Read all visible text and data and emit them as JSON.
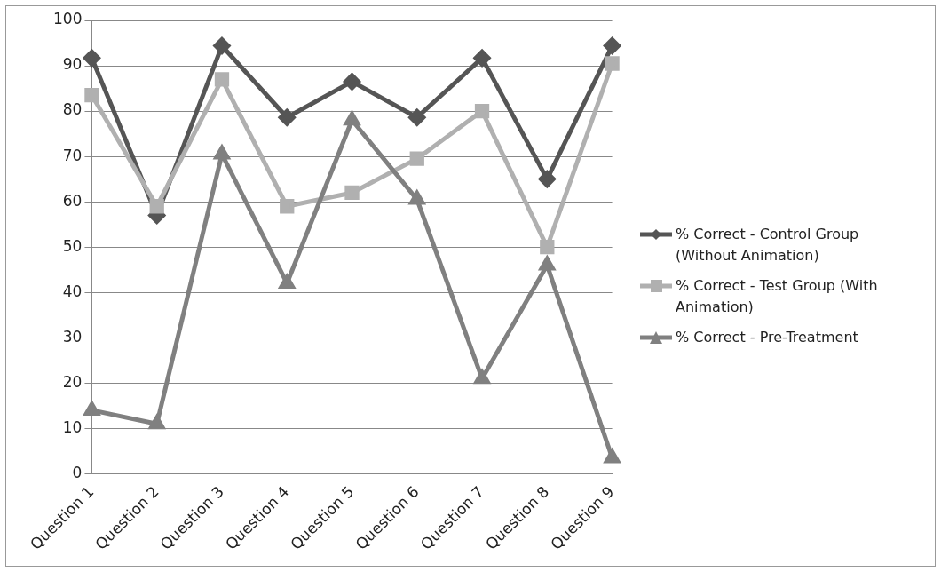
{
  "chart_data": {
    "type": "line",
    "categories": [
      "Question 1",
      "Question 2",
      "Question 3",
      "Question 4",
      "Question 5",
      "Question 6",
      "Question 7",
      "Question 8",
      "Question 9"
    ],
    "series": [
      {
        "name": "% Correct - Control Group (Without Animation)",
        "color": "#555555",
        "marker": "diamond",
        "values": [
          91.7,
          57,
          94.4,
          78.6,
          86.5,
          78.6,
          91.7,
          65,
          94.4
        ]
      },
      {
        "name": "% Correct - Test Group (With Animation)",
        "color": "#b0b0b0",
        "marker": "square",
        "values": [
          83.5,
          59,
          87,
          59,
          62,
          69.5,
          80,
          50,
          90.5
        ]
      },
      {
        "name": "% Correct - Pre-Treatment",
        "color": "#808080",
        "marker": "triangle",
        "values": [
          14,
          11,
          70.5,
          42,
          78,
          60.5,
          21,
          46,
          3.5
        ]
      }
    ],
    "ylim": [
      0,
      100
    ],
    "yticks": [
      0,
      10,
      20,
      30,
      40,
      50,
      60,
      70,
      80,
      90,
      100
    ],
    "grid": "y",
    "legend": "right"
  }
}
